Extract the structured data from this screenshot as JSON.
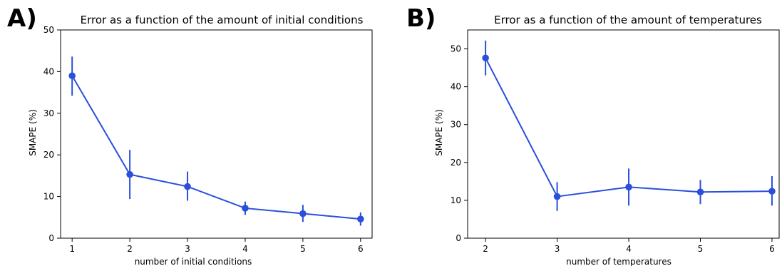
{
  "figure": {
    "panels": [
      "A)",
      "B)"
    ]
  },
  "colors": {
    "series": "#2a4fdb",
    "axis": "#000000"
  },
  "chart_data": [
    {
      "type": "line",
      "panel_label": "A)",
      "title": "Error as a function of the amount of initial conditions",
      "xlabel": "number of initial conditions",
      "ylabel": "SMAPE (%)",
      "xlim": [
        0.8,
        6.2
      ],
      "ylim": [
        0,
        50
      ],
      "xticks": [
        1,
        2,
        3,
        4,
        5,
        6
      ],
      "yticks": [
        0,
        10,
        20,
        30,
        40,
        50
      ],
      "grid": false,
      "series": [
        {
          "x": [
            1,
            2,
            3,
            4,
            5,
            6
          ],
          "y": [
            39.0,
            15.3,
            12.4,
            7.2,
            5.9,
            4.6
          ],
          "err_low": [
            34.2,
            9.4,
            9.0,
            5.6,
            3.9,
            3.0
          ],
          "err_high": [
            43.6,
            21.2,
            16.0,
            8.8,
            8.0,
            6.2
          ]
        }
      ]
    },
    {
      "type": "line",
      "panel_label": "B)",
      "title": "Error as a function of the amount of temperatures",
      "xlabel": "number of temperatures",
      "ylabel": "SMAPE (%)",
      "xlim": [
        1.75,
        6.1
      ],
      "ylim": [
        0,
        55
      ],
      "xticks": [
        2,
        3,
        4,
        5,
        6
      ],
      "yticks": [
        0,
        10,
        20,
        30,
        40,
        50
      ],
      "grid": false,
      "series": [
        {
          "x": [
            2,
            3,
            4,
            5,
            6
          ],
          "y": [
            47.6,
            11.0,
            13.5,
            12.2,
            12.4
          ],
          "err_low": [
            43.0,
            7.2,
            8.6,
            9.0,
            8.6
          ],
          "err_high": [
            52.2,
            14.8,
            18.4,
            15.4,
            16.4
          ]
        }
      ]
    }
  ]
}
